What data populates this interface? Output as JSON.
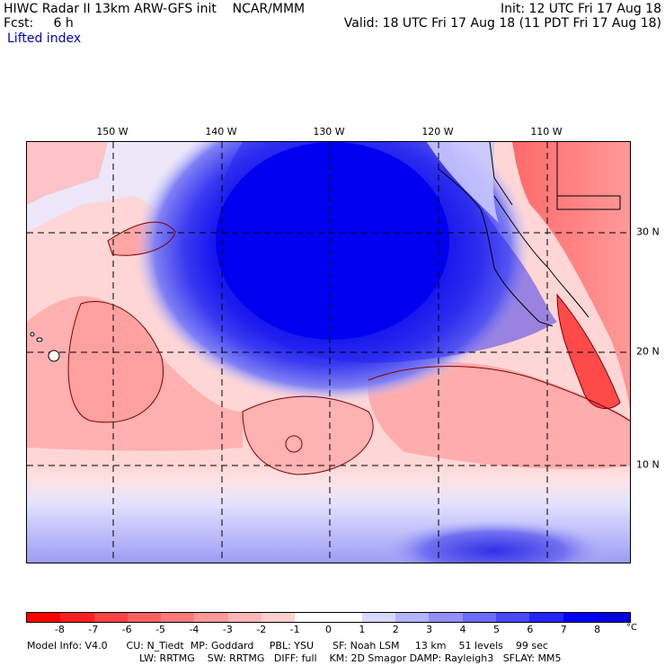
{
  "header": {
    "model_line": "HIWC Radar II 13km ARW-GFS init    NCAR/MMM",
    "fcst_line": "Fcst:     6 h",
    "field_name": "Lifted index",
    "init_line": "Init: 12 UTC Fri 17 Aug 18",
    "valid_line": "Valid: 18 UTC Fri 17 Aug 18 (11 PDT Fri 17 Aug 18)"
  },
  "map": {
    "lon_labels": [
      "150 W",
      "140 W",
      "130 W",
      "120 W",
      "110 W"
    ],
    "lat_labels": [
      "30 N",
      "20 N",
      "10 N"
    ]
  },
  "colorbar": {
    "tick_labels": [
      "-8",
      "-7",
      "-6",
      "-5",
      "-4",
      "-3",
      "-2",
      "-1",
      "0",
      "1",
      "2",
      "3",
      "4",
      "5",
      "6",
      "7",
      "8"
    ],
    "unit": "°C",
    "colors": [
      "#ff0000",
      "#ff2020",
      "#ff4545",
      "#ff6060",
      "#ff7a7a",
      "#ff9898",
      "#ffb5b5",
      "#ffd0d0",
      "#ffffff",
      "#ffffff",
      "#d8d8ff",
      "#b4b4ff",
      "#9090ff",
      "#6c6cff",
      "#4848ff",
      "#2424ff",
      "#0000ff",
      "#0000e0"
    ]
  },
  "footer": {
    "info_line1": "Model Info: V4.0      CU: N_Tiedt  MP: Goddard     PBL: YSU      SF: Noah LSM     13 km    51 levels    99 sec",
    "info_line2": "LW: RRTMG    SW: RRTMG   DIFF: full    KM: 2D Smagor DAMP: Rayleigh3   SFLAY: MM5"
  }
}
